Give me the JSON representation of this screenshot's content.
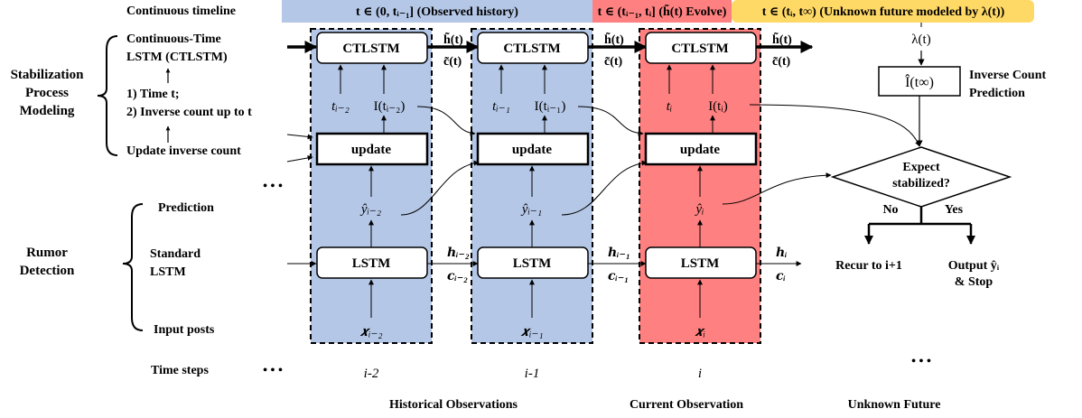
{
  "timeline": {
    "label": "Continuous timeline",
    "observed": "t ∈ (0, tᵢ₋₁] (Observed history)",
    "evolve": "t ∈ (tᵢ₋₁, tᵢ] (h̃(t) Evolve)",
    "future": "t ∈ (tᵢ, t∞) (Unknown future modeled by λ(t))"
  },
  "left_labels": {
    "stabilization": [
      "Stabilization",
      "Process",
      "Modeling"
    ],
    "ctlstm": [
      "Continuous-Time",
      "LSTM (CTLSTM)"
    ],
    "time_t": "1) Time t;",
    "inverse_count": "2) Inverse count up to t",
    "update_inverse": "Update inverse count",
    "dots": "• • •",
    "rumor": [
      "Rumor",
      "Detection"
    ],
    "prediction": "Prediction",
    "standard_lstm": [
      "Standard",
      "LSTM"
    ],
    "input_posts": "Input posts",
    "time_steps": "Time steps"
  },
  "blocks": {
    "ctlstm": "CTLSTM",
    "update": "update",
    "lstm": "LSTM"
  },
  "columns": [
    {
      "t_label": "tᵢ₋₂",
      "i_label": "I(tᵢ₋₂)",
      "y_label": "ŷᵢ₋₂",
      "x_label": "𝒙ᵢ₋₂",
      "step": "i-2",
      "h_ct": "h̃(t)",
      "c_ct": "c̃(t)",
      "h": "𝒉ᵢ₋₂",
      "c": "𝒄ᵢ₋₂"
    },
    {
      "t_label": "tᵢ₋₁",
      "i_label": "I(tᵢ₋₁)",
      "y_label": "ŷᵢ₋₁",
      "x_label": "𝒙ᵢ₋₁",
      "step": "i-1",
      "h_ct": "h̃(t)",
      "c_ct": "c̃(t)",
      "h": "𝒉ᵢ₋₁",
      "c": "𝒄ᵢ₋₁"
    },
    {
      "t_label": "tᵢ",
      "i_label": "I(tᵢ)",
      "y_label": "ŷᵢ",
      "x_label": "𝒙ᵢ",
      "step": "i",
      "h_ct": "h̃(t)",
      "c_ct": "c̃(t)",
      "h": "𝒉ᵢ",
      "c": "𝒄ᵢ"
    }
  ],
  "future": {
    "lambda": "λ(t)",
    "i_inf": "Î(t∞)",
    "inverse_pred": [
      "Inverse Count",
      "Prediction"
    ],
    "expect": [
      "Expect",
      "stabilized?"
    ],
    "no": "No",
    "yes": "Yes",
    "recur": "Recur to i+1",
    "output": [
      "Output ŷᵢ",
      "& Stop"
    ],
    "dots": "• • •"
  },
  "bottom": {
    "historical": "Historical Observations",
    "current": "Current Observation",
    "unknown": "Unknown Future"
  },
  "colors": {
    "observed_bg": "#b4c7e7",
    "current_bg": "#ff8080",
    "future_bg": "#ffd966",
    "column_blue": "#b4c7e7",
    "column_red": "#ff8080"
  }
}
